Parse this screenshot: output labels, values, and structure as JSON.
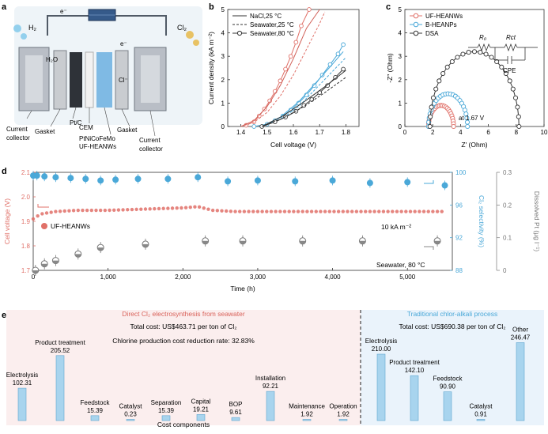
{
  "panel_letters": {
    "a": "a",
    "b": "b",
    "c": "c",
    "d": "d",
    "e": "e"
  },
  "panel_a": {
    "labels": {
      "h2": "H₂",
      "cl2": "Cl₂",
      "e_left": "e⁻",
      "e_right": "e⁻",
      "h2o": "H₂O",
      "cl": "Cl⁻",
      "current_collector_left": "Current collector",
      "gasket_left": "Gasket",
      "ptc": "Pt/C",
      "cem": "CEM",
      "anode": "PtNiCoFeMo UF-HEANWs",
      "gasket_right": "Gasket",
      "current_collector_right": "Current collector"
    }
  },
  "chart_data": [
    {
      "panel": "b",
      "type": "line",
      "xlabel": "Cell voltage (V)",
      "ylabel": "Current density (kA m⁻²)",
      "xlim": [
        1.35,
        1.85
      ],
      "ylim": [
        0,
        5
      ],
      "xticks": [
        1.4,
        1.5,
        1.6,
        1.7,
        1.8
      ],
      "yticks": [
        0,
        1,
        2,
        3,
        4,
        5
      ],
      "legend": [
        {
          "label": "NaCl,25 °C",
          "style": "solid"
        },
        {
          "label": "Seawater,25 °C",
          "style": "dashed"
        },
        {
          "label": "Seawater,80 °C",
          "style": "circle"
        }
      ],
      "series": [
        {
          "color": "#e07068",
          "style": "circle",
          "x": [
            1.42,
            1.45,
            1.47,
            1.49,
            1.51,
            1.53,
            1.55,
            1.57,
            1.59,
            1.61,
            1.63,
            1.66
          ],
          "y": [
            0.05,
            0.2,
            0.45,
            0.75,
            1.1,
            1.5,
            1.95,
            2.45,
            3.0,
            3.6,
            4.3,
            5.0
          ]
        },
        {
          "color": "#d06058",
          "style": "solid",
          "x": [
            1.4,
            1.45,
            1.5,
            1.55,
            1.6,
            1.65,
            1.7
          ],
          "y": [
            0.0,
            0.25,
            0.85,
            1.75,
            2.9,
            4.2,
            5.0
          ]
        },
        {
          "color": "#e07068",
          "style": "dashed",
          "x": [
            1.4,
            1.45,
            1.5,
            1.55,
            1.6,
            1.65,
            1.7,
            1.72
          ],
          "y": [
            0.0,
            0.18,
            0.6,
            1.3,
            2.2,
            3.3,
            4.4,
            4.9
          ]
        },
        {
          "color": "#4aa8d8",
          "style": "circle",
          "x": [
            1.45,
            1.5,
            1.53,
            1.56,
            1.59,
            1.62,
            1.65,
            1.68,
            1.71,
            1.74,
            1.77,
            1.79
          ],
          "y": [
            0.0,
            0.1,
            0.25,
            0.45,
            0.7,
            1.0,
            1.35,
            1.75,
            2.2,
            2.65,
            3.1,
            3.5
          ]
        },
        {
          "color": "#4aa8d8",
          "style": "solid",
          "x": [
            1.48,
            1.55,
            1.62,
            1.68,
            1.74,
            1.79
          ],
          "y": [
            0.0,
            0.4,
            1.05,
            1.8,
            2.55,
            3.2
          ]
        },
        {
          "color": "#4aa8d8",
          "style": "dashed",
          "x": [
            1.48,
            1.55,
            1.62,
            1.68,
            1.74,
            1.8
          ],
          "y": [
            0.0,
            0.3,
            0.85,
            1.55,
            2.25,
            2.95
          ]
        },
        {
          "color": "#333333",
          "style": "circle",
          "x": [
            1.48,
            1.53,
            1.57,
            1.61,
            1.64,
            1.67,
            1.7,
            1.73,
            1.76,
            1.79
          ],
          "y": [
            0.0,
            0.2,
            0.4,
            0.65,
            0.9,
            1.15,
            1.45,
            1.75,
            2.1,
            2.45
          ]
        },
        {
          "color": "#333333",
          "style": "solid",
          "x": [
            1.48,
            1.56,
            1.64,
            1.72,
            1.8
          ],
          "y": [
            0.0,
            0.45,
            1.05,
            1.7,
            2.4
          ]
        },
        {
          "color": "#333333",
          "style": "dashed",
          "x": [
            1.48,
            1.56,
            1.64,
            1.72,
            1.8
          ],
          "y": [
            0.0,
            0.35,
            0.85,
            1.45,
            2.1
          ]
        }
      ]
    },
    {
      "panel": "c",
      "type": "scatter",
      "xlabel": "Z′ (Ohm)",
      "ylabel": "-Z″ (Ohm)",
      "xlim": [
        0,
        10
      ],
      "ylim": [
        0,
        5
      ],
      "xticks": [
        0,
        2,
        4,
        6,
        8,
        10
      ],
      "yticks": [
        0,
        1,
        2,
        3,
        4,
        5
      ],
      "annotation": "at 1.67 V",
      "circuit_labels": {
        "r0": "R₀",
        "rct": "Rct",
        "cpe": "CPE"
      },
      "legend": [
        {
          "label": "UF-HEANWs",
          "color": "#e07068"
        },
        {
          "label": "B-HEANPs",
          "color": "#4aa8d8"
        },
        {
          "label": "DSA",
          "color": "#333333"
        }
      ],
      "series": [
        {
          "name": "UF-HEANWs",
          "color": "#e07068",
          "center": 2.6,
          "radius": 0.9
        },
        {
          "name": "B-HEANPs",
          "color": "#4aa8d8",
          "center": 3.1,
          "radius": 1.4
        },
        {
          "name": "DSA",
          "color": "#333333",
          "center": 5.0,
          "radius": 3.2
        }
      ]
    },
    {
      "panel": "d",
      "type": "scatter",
      "xlabel": "Time (h)",
      "ylabel_left": "Cell voltage (V)",
      "ylabel_right1": "Cl₂ selectivity (%)",
      "ylabel_right2": "Dissolved Pt (μg l⁻¹)",
      "xlim": [
        0,
        5600
      ],
      "ylim_left": [
        1.7,
        2.1
      ],
      "ylim_right1": [
        88,
        100
      ],
      "ylim_right2": [
        0,
        0.3
      ],
      "xticks": [
        0,
        1000,
        2000,
        3000,
        4000,
        5000
      ],
      "xtick_labels": [
        "0",
        "1,000",
        "2,000",
        "3,000",
        "4,000",
        "5,000"
      ],
      "yticks_left": [
        1.7,
        1.8,
        1.9,
        2.0,
        2.1
      ],
      "yticks_right1": [
        88,
        92,
        96,
        100
      ],
      "yticks_right2": [
        0,
        0.1,
        0.2,
        0.3
      ],
      "annotations": {
        "series_label": "UF-HEANWs",
        "current": "10 kA m⁻²",
        "condition": "Seawater, 80 °C"
      },
      "voltage": {
        "x": [
          0,
          100,
          300,
          600,
          1000,
          1500,
          2000,
          2200,
          2400,
          2700,
          3000,
          3500,
          4000,
          4500,
          5000,
          5500
        ],
        "y": [
          1.91,
          1.93,
          1.94,
          1.945,
          1.945,
          1.95,
          1.955,
          1.96,
          1.945,
          1.94,
          1.94,
          1.94,
          1.94,
          1.94,
          1.94,
          1.94
        ]
      },
      "selectivity": {
        "x": [
          0,
          50,
          150,
          300,
          500,
          700,
          900,
          1100,
          1400,
          1800,
          2200,
          2600,
          3000,
          3500,
          4000,
          4500,
          5000,
          5500
        ],
        "y": [
          99.6,
          99.6,
          99.5,
          99.4,
          99.3,
          99.2,
          99.0,
          99.1,
          99.2,
          99.2,
          99.4,
          98.9,
          99.0,
          98.9,
          99.0,
          98.7,
          98.8,
          98.4
        ]
      },
      "dissolved_pt": {
        "x": [
          30,
          150,
          300,
          600,
          900,
          1500,
          2300,
          2800,
          3600,
          4400,
          5400
        ],
        "y": [
          0.0,
          0.02,
          0.03,
          0.05,
          0.07,
          0.08,
          0.09,
          0.09,
          0.09,
          0.09,
          0.09
        ]
      }
    },
    {
      "panel": "e",
      "type": "bar",
      "xlabel": "Cost components",
      "groups": [
        {
          "title": "Direct Cl₂ electrosynthesis from seawater",
          "total": "Total cost: US$463.71 per ton of Cl₂",
          "note": "Chlorine production cost reduction rate: 32.83%",
          "categories": [
            "Electrolysis",
            "Product treatment",
            "Feedstock",
            "Catalyst",
            "Separation",
            "Capital",
            "BOP",
            "Installation",
            "Maintenance",
            "Operation"
          ],
          "values": [
            102.31,
            205.52,
            15.39,
            0.23,
            15.39,
            19.21,
            9.61,
            92.21,
            1.92,
            1.92
          ],
          "value_labels": [
            "102.31",
            "205.52",
            "15.39",
            "0.23",
            "15.39",
            "19.21",
            "9.61",
            "92.21",
            "1.92",
            "1.92"
          ]
        },
        {
          "title": "Traditional chlor-alkali process",
          "total": "Total cost: US$690.38 per ton of Cl₂",
          "categories": [
            "Electrolysis",
            "Product treatment",
            "Feedstock",
            "Catalyst",
            "Other"
          ],
          "values": [
            210.0,
            142.1,
            90.9,
            0.91,
            246.47
          ],
          "value_labels": [
            "210.00",
            "142.10",
            "90.90",
            "0.91",
            "246.47"
          ]
        }
      ]
    }
  ],
  "colors": {
    "red": "#e07068",
    "blue": "#4aa8d8",
    "dark": "#333333",
    "gray": "#9a9a9a",
    "left_bg": "#fbeeee",
    "right_bg": "#eaf3fb",
    "left_title": "#d9625a",
    "right_title": "#4aa8d8"
  }
}
